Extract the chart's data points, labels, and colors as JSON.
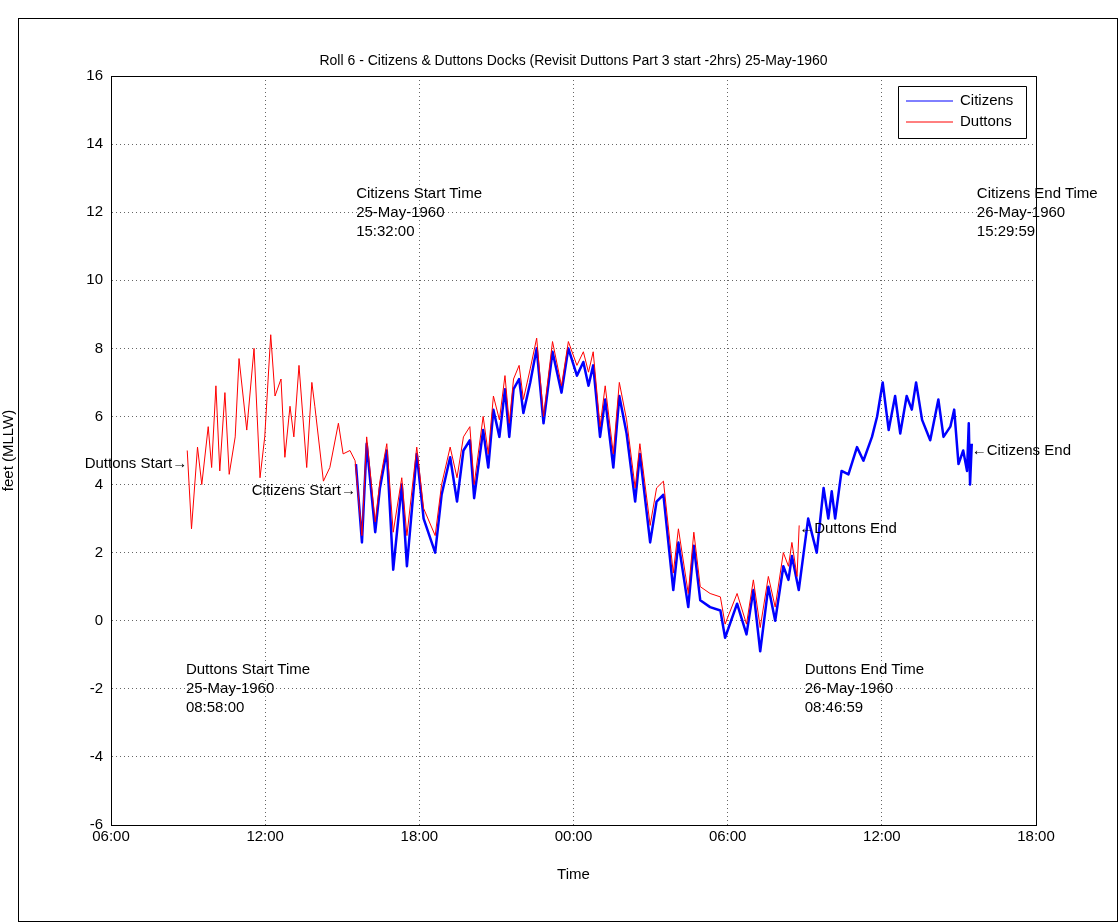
{
  "chart_data": {
    "type": "line",
    "title": "Roll 6 - Citizens & Duttons Docks (Revisit Duttons Part 3 start -2hrs) 25-May-1960",
    "xlabel": "Time",
    "ylabel": "feet (MLLW)",
    "xlim": [
      "1960-05-25T06:00",
      "1960-05-26T18:00"
    ],
    "xticks": [
      {
        "value": "1960-05-25T06:00",
        "label": "06:00"
      },
      {
        "value": "1960-05-25T12:00",
        "label": "12:00"
      },
      {
        "value": "1960-05-25T18:00",
        "label": "18:00"
      },
      {
        "value": "1960-05-26T00:00",
        "label": "00:00"
      },
      {
        "value": "1960-05-26T06:00",
        "label": "06:00"
      },
      {
        "value": "1960-05-26T12:00",
        "label": "12:00"
      },
      {
        "value": "1960-05-26T18:00",
        "label": "18:00"
      }
    ],
    "ylim": [
      -6,
      16
    ],
    "yticks": [
      -6,
      -4,
      -2,
      0,
      2,
      4,
      6,
      8,
      10,
      12,
      14,
      16
    ],
    "grid": true,
    "legend": "top right",
    "marker": "none",
    "line_style": "solid",
    "series": [
      {
        "name": "Citizens",
        "color": "#0000ff",
        "x": [
          "1960-05-25T15:32",
          "1960-05-25T15:46",
          "1960-05-25T15:57",
          "1960-05-25T16:17",
          "1960-05-25T16:28",
          "1960-05-25T16:44",
          "1960-05-25T16:59",
          "1960-05-25T17:19",
          "1960-05-25T17:31",
          "1960-05-25T17:54",
          "1960-05-25T18:10",
          "1960-05-25T18:37",
          "1960-05-25T18:52",
          "1960-05-25T19:12",
          "1960-05-25T19:28",
          "1960-05-25T19:43",
          "1960-05-25T19:58",
          "1960-05-25T20:08",
          "1960-05-25T20:29",
          "1960-05-25T20:41",
          "1960-05-25T20:53",
          "1960-05-25T21:07",
          "1960-05-25T21:20",
          "1960-05-25T21:30",
          "1960-05-25T21:40",
          "1960-05-25T21:53",
          "1960-05-25T22:03",
          "1960-05-25T22:19",
          "1960-05-25T22:34",
          "1960-05-25T22:50",
          "1960-05-25T23:11",
          "1960-05-25T23:32",
          "1960-05-25T23:48",
          "1960-05-26T00:08",
          "1960-05-26T00:23",
          "1960-05-26T00:35",
          "1960-05-26T00:46",
          "1960-05-26T01:02",
          "1960-05-26T01:14",
          "1960-05-26T01:33",
          "1960-05-26T01:47",
          "1960-05-26T02:04",
          "1960-05-26T02:24",
          "1960-05-26T02:35",
          "1960-05-26T02:59",
          "1960-05-26T03:14",
          "1960-05-26T03:30",
          "1960-05-26T03:53",
          "1960-05-26T04:05",
          "1960-05-26T04:28",
          "1960-05-26T04:41",
          "1960-05-26T04:56",
          "1960-05-26T05:19",
          "1960-05-26T05:43",
          "1960-05-26T05:54",
          "1960-05-26T06:22",
          "1960-05-26T06:44",
          "1960-05-26T07:00",
          "1960-05-26T07:16",
          "1960-05-26T07:35",
          "1960-05-26T07:51",
          "1960-05-26T08:10",
          "1960-05-26T08:22",
          "1960-05-26T08:30",
          "1960-05-26T08:46",
          "1960-05-26T09:08",
          "1960-05-26T09:28",
          "1960-05-26T09:44",
          "1960-05-26T09:55",
          "1960-05-26T10:03",
          "1960-05-26T10:11",
          "1960-05-26T10:26",
          "1960-05-26T10:42",
          "1960-05-26T11:02",
          "1960-05-26T11:17",
          "1960-05-26T11:37",
          "1960-05-26T11:49",
          "1960-05-26T12:02",
          "1960-05-26T12:16",
          "1960-05-26T12:31",
          "1960-05-26T12:43",
          "1960-05-26T12:58",
          "1960-05-26T13:10",
          "1960-05-26T13:20",
          "1960-05-26T13:34",
          "1960-05-26T13:53",
          "1960-05-26T14:12",
          "1960-05-26T14:24",
          "1960-05-26T14:40",
          "1960-05-26T14:49",
          "1960-05-26T14:59",
          "1960-05-26T15:10",
          "1960-05-26T15:19",
          "1960-05-26T15:23",
          "1960-05-26T15:26",
          "1960-05-26T15:30"
        ],
        "values": [
          4.6,
          2.3,
          5.2,
          2.6,
          3.9,
          5.0,
          1.5,
          4.0,
          1.6,
          4.9,
          3.0,
          2.0,
          3.7,
          4.8,
          3.5,
          5.0,
          5.3,
          3.6,
          5.6,
          4.5,
          6.2,
          5.4,
          6.8,
          5.4,
          6.8,
          7.1,
          6.1,
          7.0,
          8.0,
          5.8,
          7.9,
          6.7,
          8.0,
          7.2,
          7.6,
          6.9,
          7.5,
          5.4,
          6.5,
          4.5,
          6.6,
          5.5,
          3.5,
          4.9,
          2.3,
          3.5,
          3.7,
          0.9,
          2.3,
          0.4,
          2.2,
          0.6,
          0.4,
          0.3,
          -0.5,
          0.5,
          -0.4,
          0.9,
          -0.9,
          1.0,
          0.0,
          1.6,
          1.2,
          1.9,
          0.9,
          3.0,
          2.0,
          3.9,
          3.0,
          3.8,
          3.0,
          4.4,
          4.3,
          5.1,
          4.7,
          5.4,
          6.0,
          7.0,
          5.6,
          6.6,
          5.5,
          6.6,
          6.2,
          7.0,
          5.9,
          5.3,
          6.5,
          5.4,
          5.7,
          6.2,
          4.6,
          5.0,
          4.4,
          5.8,
          4.0,
          5.2
        ]
      },
      {
        "name": "Duttons",
        "color": "#ff0000",
        "x": [
          "1960-05-25T08:58",
          "1960-05-25T09:08",
          "1960-05-25T09:22",
          "1960-05-25T09:32",
          "1960-05-25T09:47",
          "1960-05-25T09:55",
          "1960-05-25T10:05",
          "1960-05-25T10:14",
          "1960-05-25T10:26",
          "1960-05-25T10:36",
          "1960-05-25T10:50",
          "1960-05-25T10:59",
          "1960-05-25T11:17",
          "1960-05-25T11:34",
          "1960-05-25T11:48",
          "1960-05-25T11:59",
          "1960-05-25T12:13",
          "1960-05-25T12:23",
          "1960-05-25T12:37",
          "1960-05-25T12:46",
          "1960-05-25T12:58",
          "1960-05-25T13:07",
          "1960-05-25T13:19",
          "1960-05-25T13:37",
          "1960-05-25T13:49",
          "1960-05-25T13:56",
          "1960-05-25T14:16",
          "1960-05-25T14:31",
          "1960-05-25T14:51",
          "1960-05-25T15:02",
          "1960-05-25T15:18",
          "1960-05-25T15:30",
          "1960-05-25T15:46",
          "1960-05-25T15:57",
          "1960-05-25T16:17",
          "1960-05-25T16:28",
          "1960-05-25T16:44",
          "1960-05-25T16:59",
          "1960-05-25T17:19",
          "1960-05-25T17:31",
          "1960-05-25T17:54",
          "1960-05-25T18:10",
          "1960-05-25T18:37",
          "1960-05-25T18:52",
          "1960-05-25T19:12",
          "1960-05-25T19:28",
          "1960-05-25T19:43",
          "1960-05-25T19:58",
          "1960-05-25T20:08",
          "1960-05-25T20:29",
          "1960-05-25T20:41",
          "1960-05-25T20:53",
          "1960-05-25T21:07",
          "1960-05-25T21:20",
          "1960-05-25T21:30",
          "1960-05-25T21:40",
          "1960-05-25T21:53",
          "1960-05-25T22:03",
          "1960-05-25T22:19",
          "1960-05-25T22:34",
          "1960-05-25T22:50",
          "1960-05-25T23:11",
          "1960-05-25T23:32",
          "1960-05-25T23:48",
          "1960-05-26T00:08",
          "1960-05-26T00:23",
          "1960-05-26T00:35",
          "1960-05-26T00:46",
          "1960-05-26T01:02",
          "1960-05-26T01:14",
          "1960-05-26T01:33",
          "1960-05-26T01:47",
          "1960-05-26T02:04",
          "1960-05-26T02:24",
          "1960-05-26T02:35",
          "1960-05-26T02:59",
          "1960-05-26T03:14",
          "1960-05-26T03:30",
          "1960-05-26T03:53",
          "1960-05-26T04:05",
          "1960-05-26T04:28",
          "1960-05-26T04:41",
          "1960-05-26T04:56",
          "1960-05-26T05:19",
          "1960-05-26T05:43",
          "1960-05-26T05:54",
          "1960-05-26T06:22",
          "1960-05-26T06:44",
          "1960-05-26T07:00",
          "1960-05-26T07:16",
          "1960-05-26T07:35",
          "1960-05-26T07:51",
          "1960-05-26T08:10",
          "1960-05-26T08:22",
          "1960-05-26T08:30",
          "1960-05-26T08:42",
          "1960-05-26T08:47"
        ],
        "values": [
          5.0,
          2.7,
          5.1,
          4.0,
          5.7,
          4.5,
          6.9,
          4.4,
          6.7,
          4.3,
          5.4,
          7.7,
          5.6,
          8.0,
          4.2,
          5.4,
          8.4,
          6.6,
          7.1,
          4.8,
          6.3,
          5.4,
          7.5,
          4.5,
          7.0,
          6.3,
          4.1,
          4.5,
          5.8,
          4.9,
          5.0,
          4.7,
          2.5,
          5.4,
          2.9,
          4.1,
          5.2,
          2.6,
          4.2,
          2.5,
          5.1,
          3.3,
          2.5,
          4.0,
          5.1,
          4.2,
          5.4,
          5.7,
          4.0,
          6.0,
          4.9,
          6.6,
          5.9,
          7.2,
          5.8,
          7.1,
          7.5,
          6.5,
          7.4,
          8.3,
          6.0,
          8.2,
          6.9,
          8.2,
          7.5,
          7.9,
          7.3,
          7.9,
          5.7,
          6.9,
          4.9,
          7.0,
          5.9,
          3.9,
          5.2,
          2.8,
          3.9,
          4.1,
          1.4,
          2.7,
          0.8,
          2.6,
          1.0,
          0.8,
          0.7,
          -0.1,
          0.8,
          -0.1,
          1.2,
          -0.2,
          1.3,
          0.4,
          2.0,
          1.6,
          2.3,
          1.3,
          2.8
        ]
      }
    ],
    "annotations": [
      {
        "text": "Duttons Start→",
        "x": "1960-05-25T08:58",
        "y": 4.6
      },
      {
        "text": "Citizens Start→",
        "x": "1960-05-25T15:32",
        "y": 3.8
      },
      {
        "text": "←Duttons End",
        "x": "1960-05-26T08:47",
        "y": 2.7
      },
      {
        "text": "←Citizens End",
        "x": "1960-05-26T15:30",
        "y": 5.0
      },
      "Citizens Start Time\n25-May-1960\n15:32:00",
      "Citizens End Time\n26-May-1960\n15:29:59",
      "Duttons Start Time\n25-May-1960\n08:58:00",
      "Duttons End Time\n26-May-1960\n08:46:59"
    ]
  }
}
